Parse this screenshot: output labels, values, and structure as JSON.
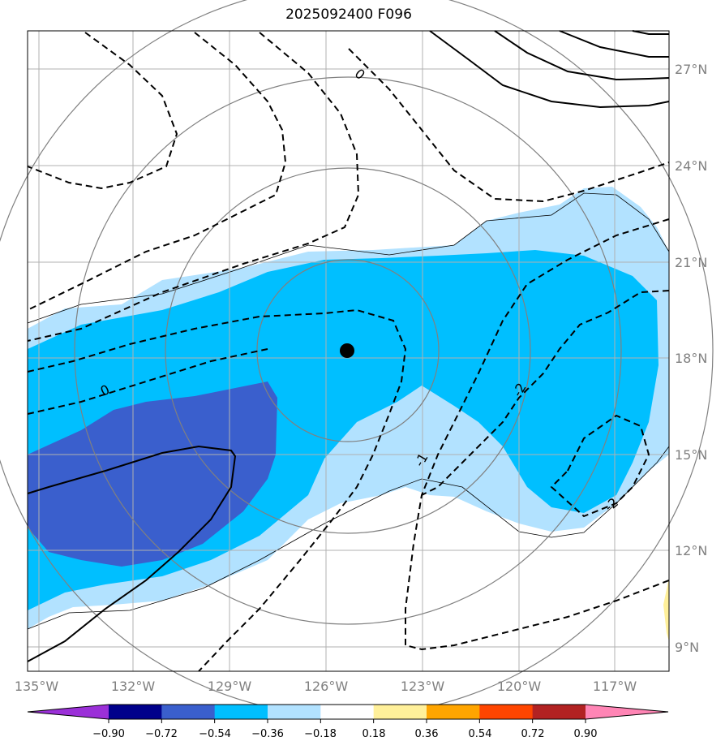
{
  "title": "2025092400 F096",
  "map": {
    "lon_labels": [
      "135°W",
      "132°W",
      "129°W",
      "126°W",
      "123°W",
      "120°W",
      "117°W"
    ],
    "lat_labels": [
      "27°N",
      "24°N",
      "21°N",
      "18°N",
      "15°N",
      "12°N",
      "9°N"
    ],
    "contour_labels": [
      "0",
      "0",
      "-1",
      "-2",
      "-2"
    ],
    "center_marker": {
      "lon": -125.4,
      "lat": 18.2
    }
  },
  "colorbar": {
    "ticks": [
      "−0.90",
      "−0.72",
      "−0.54",
      "−0.36",
      "−0.18",
      "0.18",
      "0.36",
      "0.54",
      "0.72",
      "0.90"
    ],
    "colors": [
      "#9b30d8",
      "#00008b",
      "#3a5fcd",
      "#00bfff",
      "#b2e2ff",
      "#ffffff",
      "#fff09a",
      "#ffa500",
      "#ff4500",
      "#b22222",
      "#ff85b5"
    ]
  },
  "colors": {
    "shade_light": "#b2e2ff",
    "shade_mid": "#00bfff",
    "shade_dark": "#3a5fcd",
    "shade_yellow": "#fff09a",
    "grid": "#b0b0b0",
    "rings": "#808080"
  }
}
